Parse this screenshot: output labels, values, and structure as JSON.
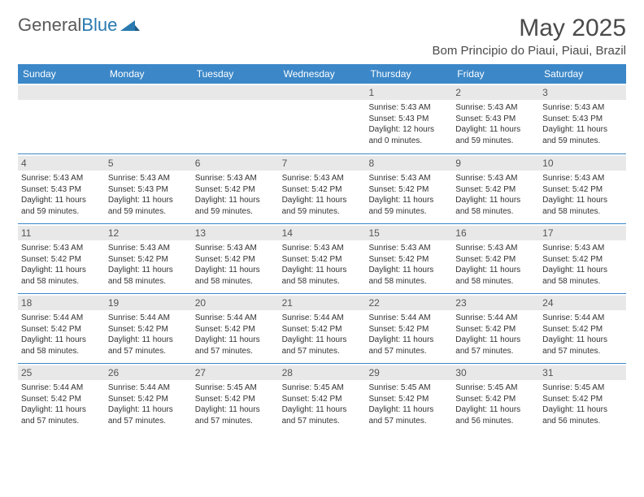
{
  "logo": {
    "word1": "General",
    "word2": "Blue"
  },
  "title": "May 2025",
  "location": "Bom Principio do Piaui, Piaui, Brazil",
  "colors": {
    "header_bg": "#3b87c8",
    "header_text": "#ffffff",
    "daynum_bg": "#e8e8e8",
    "cell_border": "#3b87c8",
    "body_text": "#333333",
    "logo_gray": "#5a5a5a",
    "logo_blue": "#2a7ab0"
  },
  "day_headers": [
    "Sunday",
    "Monday",
    "Tuesday",
    "Wednesday",
    "Thursday",
    "Friday",
    "Saturday"
  ],
  "weeks": [
    [
      {
        "n": "",
        "sr": "",
        "ss": "",
        "dl": ""
      },
      {
        "n": "",
        "sr": "",
        "ss": "",
        "dl": ""
      },
      {
        "n": "",
        "sr": "",
        "ss": "",
        "dl": ""
      },
      {
        "n": "",
        "sr": "",
        "ss": "",
        "dl": ""
      },
      {
        "n": "1",
        "sr": "Sunrise: 5:43 AM",
        "ss": "Sunset: 5:43 PM",
        "dl": "Daylight: 12 hours and 0 minutes."
      },
      {
        "n": "2",
        "sr": "Sunrise: 5:43 AM",
        "ss": "Sunset: 5:43 PM",
        "dl": "Daylight: 11 hours and 59 minutes."
      },
      {
        "n": "3",
        "sr": "Sunrise: 5:43 AM",
        "ss": "Sunset: 5:43 PM",
        "dl": "Daylight: 11 hours and 59 minutes."
      }
    ],
    [
      {
        "n": "4",
        "sr": "Sunrise: 5:43 AM",
        "ss": "Sunset: 5:43 PM",
        "dl": "Daylight: 11 hours and 59 minutes."
      },
      {
        "n": "5",
        "sr": "Sunrise: 5:43 AM",
        "ss": "Sunset: 5:43 PM",
        "dl": "Daylight: 11 hours and 59 minutes."
      },
      {
        "n": "6",
        "sr": "Sunrise: 5:43 AM",
        "ss": "Sunset: 5:42 PM",
        "dl": "Daylight: 11 hours and 59 minutes."
      },
      {
        "n": "7",
        "sr": "Sunrise: 5:43 AM",
        "ss": "Sunset: 5:42 PM",
        "dl": "Daylight: 11 hours and 59 minutes."
      },
      {
        "n": "8",
        "sr": "Sunrise: 5:43 AM",
        "ss": "Sunset: 5:42 PM",
        "dl": "Daylight: 11 hours and 59 minutes."
      },
      {
        "n": "9",
        "sr": "Sunrise: 5:43 AM",
        "ss": "Sunset: 5:42 PM",
        "dl": "Daylight: 11 hours and 58 minutes."
      },
      {
        "n": "10",
        "sr": "Sunrise: 5:43 AM",
        "ss": "Sunset: 5:42 PM",
        "dl": "Daylight: 11 hours and 58 minutes."
      }
    ],
    [
      {
        "n": "11",
        "sr": "Sunrise: 5:43 AM",
        "ss": "Sunset: 5:42 PM",
        "dl": "Daylight: 11 hours and 58 minutes."
      },
      {
        "n": "12",
        "sr": "Sunrise: 5:43 AM",
        "ss": "Sunset: 5:42 PM",
        "dl": "Daylight: 11 hours and 58 minutes."
      },
      {
        "n": "13",
        "sr": "Sunrise: 5:43 AM",
        "ss": "Sunset: 5:42 PM",
        "dl": "Daylight: 11 hours and 58 minutes."
      },
      {
        "n": "14",
        "sr": "Sunrise: 5:43 AM",
        "ss": "Sunset: 5:42 PM",
        "dl": "Daylight: 11 hours and 58 minutes."
      },
      {
        "n": "15",
        "sr": "Sunrise: 5:43 AM",
        "ss": "Sunset: 5:42 PM",
        "dl": "Daylight: 11 hours and 58 minutes."
      },
      {
        "n": "16",
        "sr": "Sunrise: 5:43 AM",
        "ss": "Sunset: 5:42 PM",
        "dl": "Daylight: 11 hours and 58 minutes."
      },
      {
        "n": "17",
        "sr": "Sunrise: 5:43 AM",
        "ss": "Sunset: 5:42 PM",
        "dl": "Daylight: 11 hours and 58 minutes."
      }
    ],
    [
      {
        "n": "18",
        "sr": "Sunrise: 5:44 AM",
        "ss": "Sunset: 5:42 PM",
        "dl": "Daylight: 11 hours and 58 minutes."
      },
      {
        "n": "19",
        "sr": "Sunrise: 5:44 AM",
        "ss": "Sunset: 5:42 PM",
        "dl": "Daylight: 11 hours and 57 minutes."
      },
      {
        "n": "20",
        "sr": "Sunrise: 5:44 AM",
        "ss": "Sunset: 5:42 PM",
        "dl": "Daylight: 11 hours and 57 minutes."
      },
      {
        "n": "21",
        "sr": "Sunrise: 5:44 AM",
        "ss": "Sunset: 5:42 PM",
        "dl": "Daylight: 11 hours and 57 minutes."
      },
      {
        "n": "22",
        "sr": "Sunrise: 5:44 AM",
        "ss": "Sunset: 5:42 PM",
        "dl": "Daylight: 11 hours and 57 minutes."
      },
      {
        "n": "23",
        "sr": "Sunrise: 5:44 AM",
        "ss": "Sunset: 5:42 PM",
        "dl": "Daylight: 11 hours and 57 minutes."
      },
      {
        "n": "24",
        "sr": "Sunrise: 5:44 AM",
        "ss": "Sunset: 5:42 PM",
        "dl": "Daylight: 11 hours and 57 minutes."
      }
    ],
    [
      {
        "n": "25",
        "sr": "Sunrise: 5:44 AM",
        "ss": "Sunset: 5:42 PM",
        "dl": "Daylight: 11 hours and 57 minutes."
      },
      {
        "n": "26",
        "sr": "Sunrise: 5:44 AM",
        "ss": "Sunset: 5:42 PM",
        "dl": "Daylight: 11 hours and 57 minutes."
      },
      {
        "n": "27",
        "sr": "Sunrise: 5:45 AM",
        "ss": "Sunset: 5:42 PM",
        "dl": "Daylight: 11 hours and 57 minutes."
      },
      {
        "n": "28",
        "sr": "Sunrise: 5:45 AM",
        "ss": "Sunset: 5:42 PM",
        "dl": "Daylight: 11 hours and 57 minutes."
      },
      {
        "n": "29",
        "sr": "Sunrise: 5:45 AM",
        "ss": "Sunset: 5:42 PM",
        "dl": "Daylight: 11 hours and 57 minutes."
      },
      {
        "n": "30",
        "sr": "Sunrise: 5:45 AM",
        "ss": "Sunset: 5:42 PM",
        "dl": "Daylight: 11 hours and 56 minutes."
      },
      {
        "n": "31",
        "sr": "Sunrise: 5:45 AM",
        "ss": "Sunset: 5:42 PM",
        "dl": "Daylight: 11 hours and 56 minutes."
      }
    ]
  ]
}
